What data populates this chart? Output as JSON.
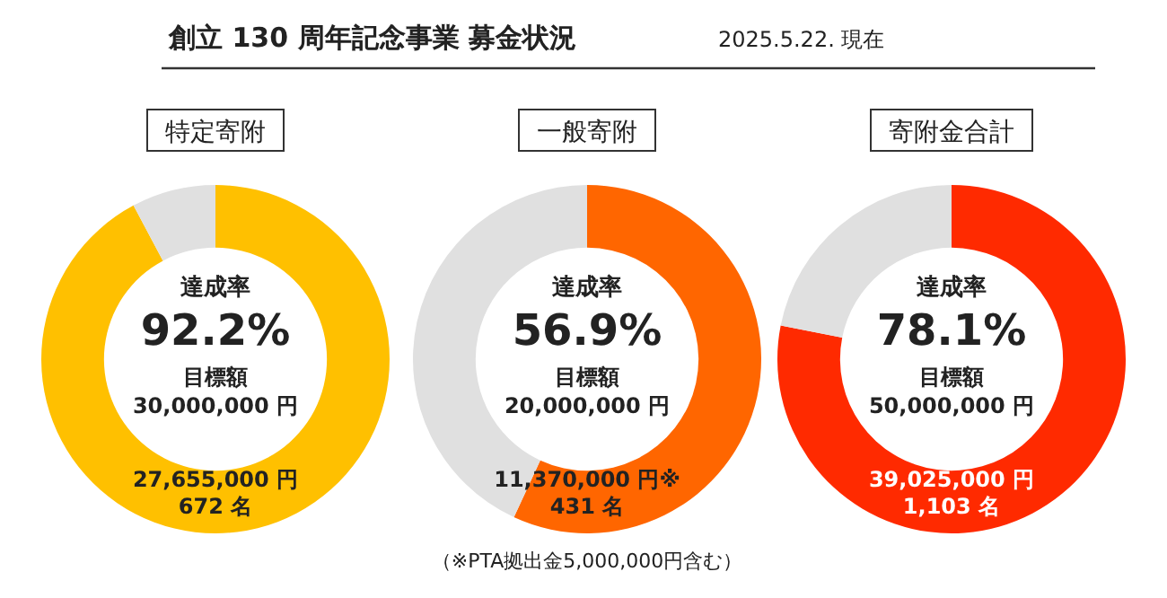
{
  "chart_data": [
    {
      "type": "other",
      "title": "創立 130 周年記念事業  募金状況",
      "subtitle": "2025.5.22. 現在"
    },
    {
      "type": "donut",
      "title": "特定寄附",
      "categories": [
        null,
        null
      ],
      "values": [
        92.2,
        7.8
      ],
      "colors": [
        "#ffc000",
        "#e0e0e0"
      ],
      "value_labels": [
        "92.2%",
        null
      ],
      "annotations": [
        "達成率",
        "目標額",
        "30,000,000 円",
        "27,655,000 円",
        "672 名"
      ]
    },
    {
      "type": "donut",
      "title": "一般寄附",
      "categories": [
        null,
        null
      ],
      "values": [
        56.9,
        43.1
      ],
      "colors": [
        "#ff6600",
        "#e0e0e0"
      ],
      "value_labels": [
        "56.9%",
        null
      ],
      "annotations": [
        "達成率",
        "目標額",
        "20,000,000 円",
        "11,370,000 円※",
        "431 名",
        "（※PTA拠出金5,000,000円含む）"
      ]
    },
    {
      "type": "donut",
      "title": "寄附金合計",
      "categories": [
        null,
        null
      ],
      "values": [
        78.1,
        21.9
      ],
      "colors": [
        "#ff2a00",
        "#e0e0e0"
      ],
      "value_labels": [
        "78.1%",
        null
      ],
      "annotations": [
        "達成率",
        "目標額",
        "50,000,000 円",
        "39,025,000 円",
        "1,103 名"
      ]
    }
  ]
}
